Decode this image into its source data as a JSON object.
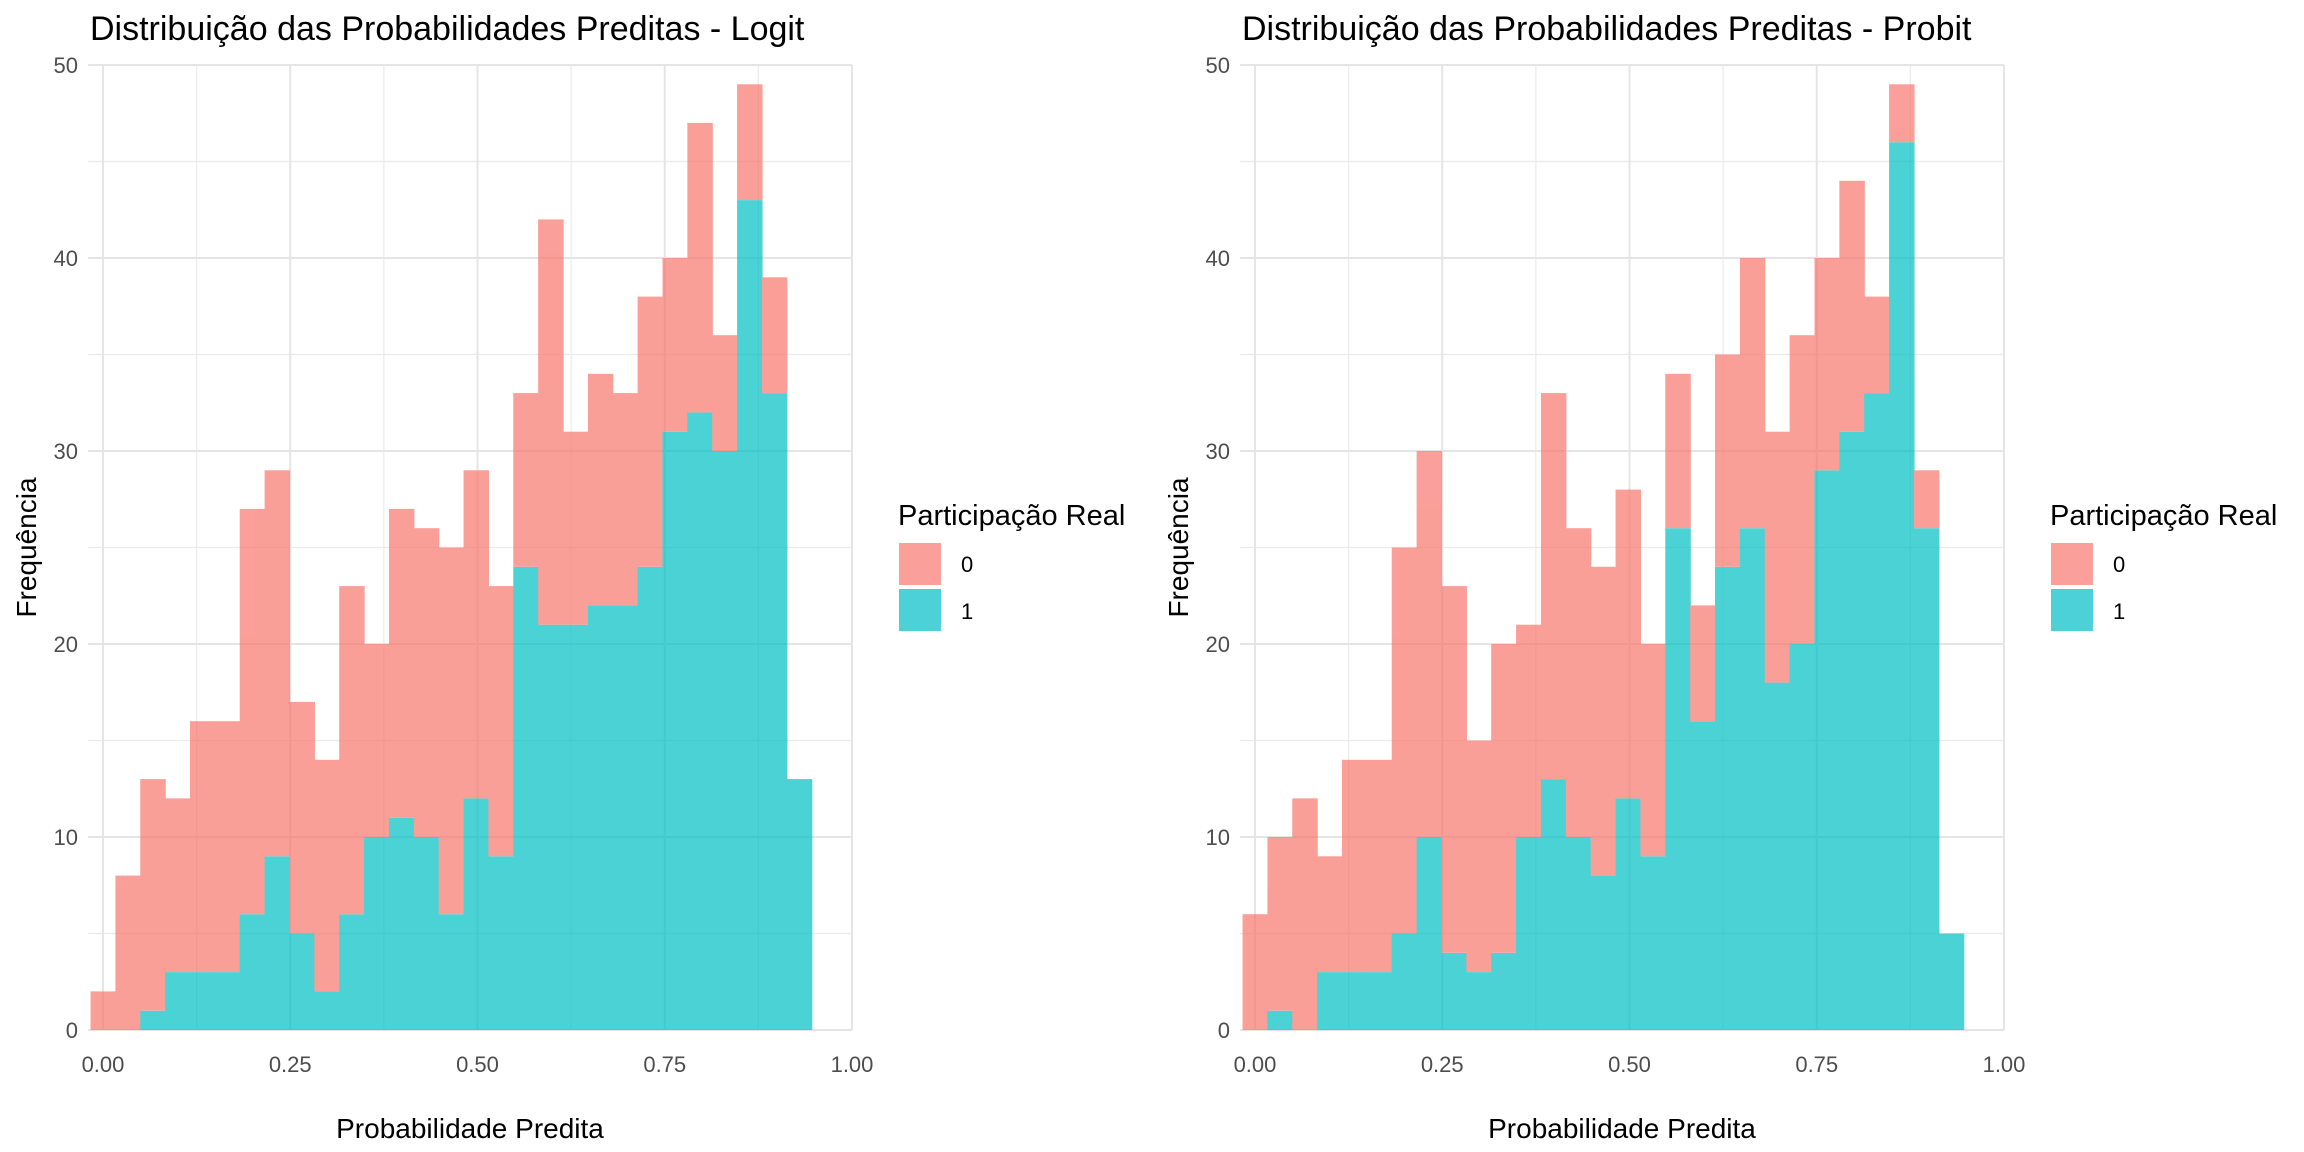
{
  "chart_data": [
    {
      "type": "bar",
      "stacking": "stacked histogram",
      "title": "Distribuição das Probabilidades Preditas - Logit",
      "xlabel": "Probabilidade Predita",
      "ylabel": "Frequência",
      "xlim": [
        -0.02,
        1.0
      ],
      "ylim": [
        0,
        50
      ],
      "x_ticks": [
        "0.00",
        "0.25",
        "0.50",
        "0.75",
        "1.00"
      ],
      "y_ticks": [
        "0",
        "10",
        "20",
        "30",
        "40",
        "50"
      ],
      "grid": true,
      "legend": {
        "title": "Participação Real",
        "position": "right",
        "entries": [
          "0",
          "1"
        ]
      },
      "colors": {
        "0": "#F8766D",
        "1": "#00BFC4"
      },
      "bin_start": -0.0166,
      "bin_width": 0.0332,
      "series": [
        {
          "name": "0",
          "values": [
            2,
            8,
            12,
            9,
            13,
            13,
            21,
            20,
            12,
            12,
            17,
            10,
            16,
            16,
            19,
            17,
            14,
            9,
            21,
            10,
            12,
            11,
            14,
            9,
            15,
            6,
            6,
            6,
            0,
            0
          ]
        },
        {
          "name": "1",
          "values": [
            0,
            0,
            1,
            3,
            3,
            3,
            6,
            9,
            5,
            2,
            6,
            10,
            11,
            10,
            6,
            12,
            9,
            24,
            21,
            21,
            22,
            22,
            24,
            31,
            32,
            30,
            43,
            33,
            13,
            0
          ]
        }
      ]
    },
    {
      "type": "bar",
      "stacking": "stacked histogram",
      "title": "Distribuição das Probabilidades Preditas - Probit",
      "xlabel": "Probabilidade Predita",
      "ylabel": "Frequência",
      "xlim": [
        -0.02,
        1.0
      ],
      "ylim": [
        0,
        50
      ],
      "x_ticks": [
        "0.00",
        "0.25",
        "0.50",
        "0.75",
        "1.00"
      ],
      "y_ticks": [
        "0",
        "10",
        "20",
        "30",
        "40",
        "50"
      ],
      "grid": true,
      "legend": {
        "title": "Participação Real",
        "position": "right",
        "entries": [
          "0",
          "1"
        ]
      },
      "colors": {
        "0": "#F8766D",
        "1": "#00BFC4"
      },
      "bin_start": -0.0166,
      "bin_width": 0.0332,
      "series": [
        {
          "name": "0",
          "values": [
            6,
            9,
            12,
            6,
            11,
            11,
            20,
            20,
            19,
            12,
            16,
            11,
            20,
            16,
            16,
            16,
            11,
            8,
            6,
            11,
            14,
            13,
            16,
            11,
            13,
            5,
            3,
            3,
            0,
            0
          ]
        },
        {
          "name": "1",
          "values": [
            0,
            1,
            0,
            3,
            3,
            3,
            5,
            10,
            4,
            3,
            4,
            10,
            13,
            10,
            8,
            12,
            9,
            26,
            16,
            24,
            26,
            18,
            20,
            29,
            31,
            33,
            46,
            26,
            5,
            0
          ]
        }
      ]
    }
  ]
}
